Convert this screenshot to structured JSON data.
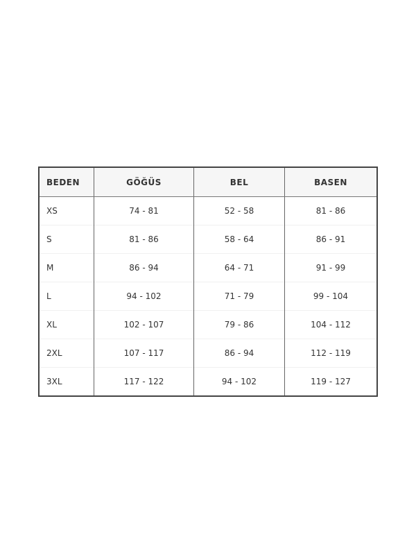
{
  "headers": [
    "BEDEN",
    "GÖĞÜS",
    "BEL",
    "BASEN"
  ],
  "rows": [
    [
      "XS",
      "74 - 81",
      "52 - 58",
      "81 - 86"
    ],
    [
      "S",
      "81 - 86",
      "58 - 64",
      "86 - 91"
    ],
    [
      "M",
      "86 - 94",
      "64 - 71",
      "91 - 99"
    ],
    [
      "L",
      "94 - 102",
      "71 - 79",
      "99 - 104"
    ],
    [
      "XL",
      "102 - 107",
      "79 - 86",
      "104 - 112"
    ],
    [
      "2XL",
      "107 - 117",
      "86 - 94",
      "112 - 119"
    ],
    [
      "3XL",
      "117 - 122",
      "94 - 102",
      "119 - 127"
    ]
  ]
}
